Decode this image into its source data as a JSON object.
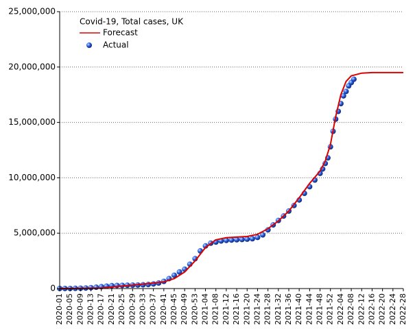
{
  "chart_data": {
    "type": "line-scatter",
    "title": "Covid-19, Total cases, UK",
    "xlim": [
      0,
      132
    ],
    "xticks": [
      {
        "value": 0,
        "label": "2020-01"
      },
      {
        "value": 4,
        "label": "2020-05"
      },
      {
        "value": 8,
        "label": "2020-09"
      },
      {
        "value": 12,
        "label": "2020-13"
      },
      {
        "value": 16,
        "label": "2020-17"
      },
      {
        "value": 20,
        "label": "2020-21"
      },
      {
        "value": 24,
        "label": "2020-25"
      },
      {
        "value": 28,
        "label": "2020-29"
      },
      {
        "value": 32,
        "label": "2020-33"
      },
      {
        "value": 36,
        "label": "2020-37"
      },
      {
        "value": 40,
        "label": "2020-41"
      },
      {
        "value": 44,
        "label": "2020-45"
      },
      {
        "value": 48,
        "label": "2020-49"
      },
      {
        "value": 52,
        "label": "2020-53"
      },
      {
        "value": 56,
        "label": "2021-04"
      },
      {
        "value": 60,
        "label": "2021-08"
      },
      {
        "value": 64,
        "label": "2021-12"
      },
      {
        "value": 68,
        "label": "2021-16"
      },
      {
        "value": 72,
        "label": "2021-20"
      },
      {
        "value": 76,
        "label": "2021-24"
      },
      {
        "value": 80,
        "label": "2021-28"
      },
      {
        "value": 84,
        "label": "2021-32"
      },
      {
        "value": 88,
        "label": "2021-36"
      },
      {
        "value": 92,
        "label": "2021-40"
      },
      {
        "value": 96,
        "label": "2021-44"
      },
      {
        "value": 100,
        "label": "2021-48"
      },
      {
        "value": 104,
        "label": "2021-52"
      },
      {
        "value": 108,
        "label": "2022-04"
      },
      {
        "value": 112,
        "label": "2022-08"
      },
      {
        "value": 116,
        "label": "2022-12"
      },
      {
        "value": 120,
        "label": "2022-16"
      },
      {
        "value": 124,
        "label": "2022-20"
      },
      {
        "value": 128,
        "label": "2022-24"
      },
      {
        "value": 132,
        "label": "2022-28"
      }
    ],
    "ylim": [
      0,
      25000000
    ],
    "yticks": [
      {
        "value": 0,
        "label": "0"
      },
      {
        "value": 5000000,
        "label": "5,000,000"
      },
      {
        "value": 10000000,
        "label": "10,000,000"
      },
      {
        "value": 15000000,
        "label": "15,000,000"
      },
      {
        "value": 20000000,
        "label": "20,000,000"
      },
      {
        "value": 25000000,
        "label": "25,000,000"
      }
    ],
    "grid": true,
    "series": [
      {
        "name": "Forecast",
        "kind": "line",
        "color": "#dd0000",
        "x": [
          0,
          16,
          32,
          40,
          44,
          48,
          52,
          56,
          60,
          64,
          72,
          76,
          80,
          84,
          88,
          92,
          96,
          100,
          102,
          104,
          106,
          108,
          110,
          112,
          116,
          120,
          132
        ],
        "values": [
          0,
          50000,
          400000,
          600000,
          900000,
          1500000,
          2500000,
          3700000,
          4400000,
          4600000,
          4700000,
          4900000,
          5400000,
          6100000,
          7000000,
          8200000,
          9500000,
          10600000,
          11500000,
          13000000,
          15500000,
          17500000,
          18700000,
          19200000,
          19450000,
          19500000,
          19500000
        ]
      },
      {
        "name": "Actual",
        "kind": "scatter",
        "color": "#1a4fd0",
        "x": [
          0,
          2,
          4,
          6,
          8,
          10,
          12,
          14,
          16,
          18,
          20,
          22,
          24,
          26,
          28,
          30,
          32,
          34,
          36,
          38,
          40,
          42,
          44,
          46,
          48,
          50,
          52,
          54,
          56,
          58,
          60,
          62,
          64,
          66,
          68,
          70,
          72,
          74,
          76,
          78,
          80,
          82,
          84,
          86,
          88,
          90,
          92,
          94,
          96,
          98,
          100,
          101,
          102,
          103,
          104,
          105,
          106,
          107,
          108,
          109,
          110,
          111,
          112,
          113
        ],
        "values": [
          10000,
          10000,
          10000,
          20000,
          30000,
          50000,
          80000,
          120000,
          170000,
          220000,
          260000,
          280000,
          290000,
          300000,
          310000,
          320000,
          340000,
          370000,
          420000,
          500000,
          650000,
          900000,
          1200000,
          1500000,
          1750000,
          2200000,
          2700000,
          3400000,
          3850000,
          4100000,
          4200000,
          4300000,
          4350000,
          4380000,
          4410000,
          4430000,
          4460000,
          4500000,
          4620000,
          4850000,
          5300000,
          5750000,
          6150000,
          6550000,
          7000000,
          7500000,
          8000000,
          8600000,
          9200000,
          9800000,
          10400000,
          10800000,
          11300000,
          11800000,
          12800000,
          14200000,
          15300000,
          16000000,
          16700000,
          17400000,
          17800000,
          18300000,
          18600000,
          18900000
        ]
      }
    ]
  }
}
